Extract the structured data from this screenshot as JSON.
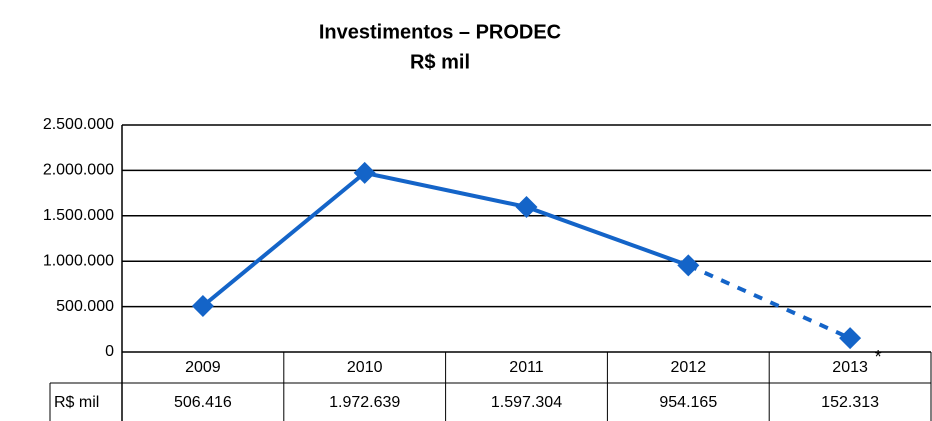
{
  "chart_data": {
    "type": "line",
    "title": "Investimentos – PRODEC",
    "subtitle": "R$ mil",
    "categories": [
      "2009",
      "2010",
      "2011",
      "2012",
      "2013"
    ],
    "series": [
      {
        "name": "R$ mil",
        "color": "#1464c8",
        "values": [
          506416,
          1972639,
          1597304,
          954165,
          152313
        ],
        "value_labels": [
          "506.416",
          "1.972.639",
          "1.597.304",
          "954.165",
          "152.313"
        ]
      }
    ],
    "dashed_after": "2012",
    "annotation": "*",
    "ylim": [
      0,
      2500000
    ],
    "yticks": [
      0,
      {
        "value": 500000,
        "label": "500.000"
      },
      {
        "value": 1000000,
        "label": "1.000.000"
      },
      {
        "value": 1500000,
        "label": "1.500.000"
      },
      {
        "value": 2000000,
        "label": "2.000.000"
      },
      {
        "value": 2500000,
        "label": "2.500.000"
      }
    ],
    "grid": true,
    "data_table": true
  }
}
